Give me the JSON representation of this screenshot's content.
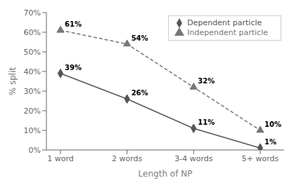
{
  "chart_data": {
    "type": "line",
    "categories": [
      "1 word",
      "2 words",
      "3-4 words",
      "5+ words"
    ],
    "x_label": "Length of NP",
    "y_label": "% split",
    "ylim": [
      0,
      0.7
    ],
    "yticks": [
      {
        "value": 0,
        "label": "0%"
      },
      {
        "value": 0.1,
        "label": "10%"
      },
      {
        "value": 0.2,
        "label": "20%"
      },
      {
        "value": 0.3,
        "label": "30%"
      },
      {
        "value": 0.4,
        "label": "40%"
      },
      {
        "value": 0.5,
        "label": "50%"
      },
      {
        "value": 0.6,
        "label": "60%"
      },
      {
        "value": 0.7,
        "label": "70%"
      }
    ],
    "grid": false,
    "legend": "upper right",
    "data_labels": true,
    "series": [
      {
        "name": "Dependent particle",
        "color": "#555555",
        "marker": "diamond",
        "line_style": "solid",
        "values": [
          0.39,
          0.26,
          0.11,
          0.01
        ],
        "value_labels": [
          "39%",
          "26%",
          "11%",
          "1%"
        ]
      },
      {
        "name": "Independent particle",
        "color": "#777777",
        "marker": "triangle",
        "line_style": "dashed",
        "values": [
          0.61,
          0.54,
          0.32,
          0.1
        ],
        "value_labels": [
          "61%",
          "54%",
          "32%",
          "10%"
        ]
      }
    ]
  }
}
